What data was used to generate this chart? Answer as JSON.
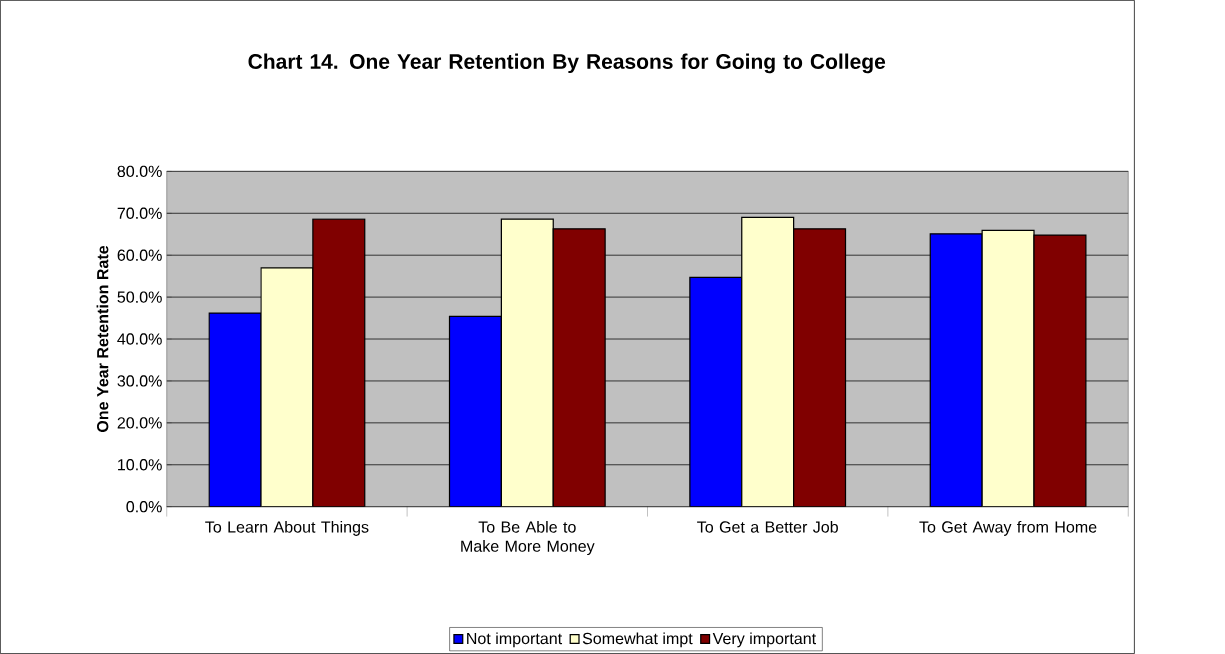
{
  "chart_data": {
    "type": "bar",
    "title": "Chart 14. One Year Retention By Reasons for Going to College",
    "ylabel": "One Year Retention Rate",
    "categories": [
      "To Learn About Things",
      "To Be Able to Make More Money",
      "To Get a Better Job",
      "To Get Away from Home"
    ],
    "series": [
      {
        "name": "Not important",
        "color": "#0000ff",
        "values": [
          46.2,
          45.4,
          54.7,
          65.1
        ]
      },
      {
        "name": "Somewhat impt",
        "color": "#ffffcc",
        "values": [
          57.0,
          68.6,
          69.0,
          65.9
        ]
      },
      {
        "name": "Very important",
        "color": "#800000",
        "values": [
          68.6,
          66.3,
          66.3,
          64.8
        ]
      }
    ],
    "ylim": [
      0,
      80
    ],
    "yticks": [
      {
        "value": 0,
        "label": "0.0%"
      },
      {
        "value": 10,
        "label": "10.0%"
      },
      {
        "value": 20,
        "label": "20.0%"
      },
      {
        "value": 30,
        "label": "30.0%"
      },
      {
        "value": 40,
        "label": "40.0%"
      },
      {
        "value": 50,
        "label": "50.0%"
      },
      {
        "value": 60,
        "label": "60.0%"
      },
      {
        "value": 70,
        "label": "70.0%"
      },
      {
        "value": 80,
        "label": "80.0%"
      }
    ],
    "grid": "y",
    "legend": "bottom"
  }
}
